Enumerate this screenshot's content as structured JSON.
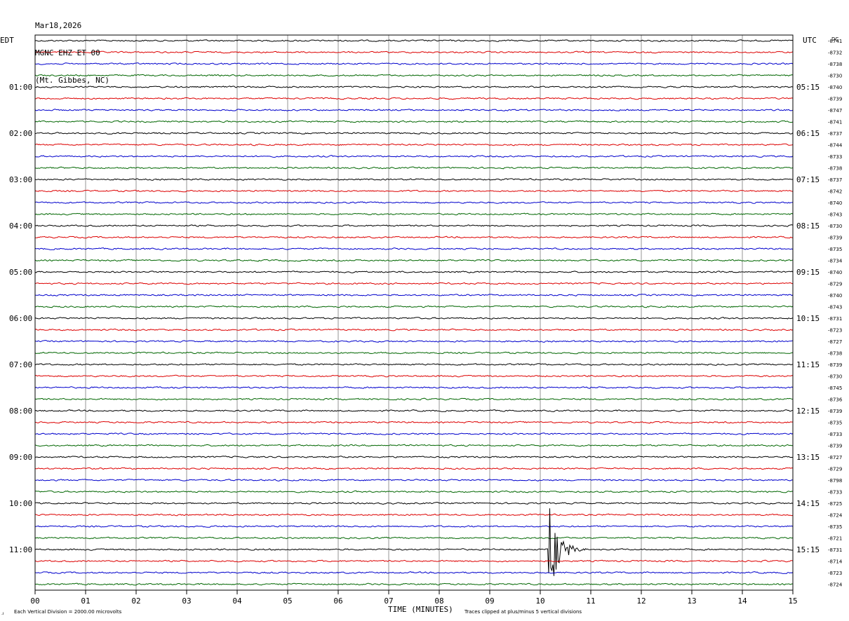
{
  "header": {
    "date": "Mar18,2026",
    "station": "MGNC EHZ ET 00",
    "location": "(Mt. Gibbes, NC)"
  },
  "left_axis_label": "EDT",
  "right_axis_label": "UTC",
  "dc_label": "DC",
  "xlabel": "TIME (MINUTES)",
  "footer_left": "Each Vertical Division = 2000.00 microvolts",
  "footer_right": "Traces clipped at plus/minus 5 vertical divisions",
  "chart_data": {
    "type": "line",
    "subtype": "helicorder",
    "x_ticks": [
      "00",
      "01",
      "02",
      "03",
      "04",
      "05",
      "06",
      "07",
      "08",
      "09",
      "10",
      "11",
      "12",
      "13",
      "14",
      "15"
    ],
    "xlim": [
      0,
      15
    ],
    "grid": true,
    "trace_colors": [
      "#000000",
      "#dd0000",
      "#0000cc",
      "#006600"
    ],
    "traces_per_hour": 4,
    "minutes_per_trace": 15,
    "edt_hour_labels": [
      "01:00",
      "02:00",
      "03:00",
      "04:00",
      "05:00",
      "06:00",
      "07:00",
      "08:00",
      "09:00",
      "10:00",
      "11:00"
    ],
    "utc_hour_labels": [
      "05:15",
      "06:15",
      "07:15",
      "08:15",
      "09:15",
      "10:15",
      "11:15",
      "12:15",
      "13:15",
      "14:15",
      "15:15"
    ],
    "dc_offsets": [
      "-8741",
      "-8732",
      "-8738",
      "-8730",
      "-8740",
      "-8739",
      "-8747",
      "-8741",
      "-8737",
      "-8744",
      "-8733",
      "-8738",
      "-8737",
      "-8742",
      "-8740",
      "-8743",
      "-8730",
      "-8739",
      "-8735",
      "-8734",
      "-8740",
      "-8729",
      "-8740",
      "-8743",
      "-8731",
      "-8723",
      "-8727",
      "-8738",
      "-8739",
      "-8730",
      "-8745",
      "-8736",
      "-8739",
      "-8735",
      "-8733",
      "-8739",
      "-8727",
      "-8729",
      "-8798",
      "-8733",
      "-8725",
      "-8724",
      "-8735",
      "-8721",
      "-8731",
      "-8714",
      "-8723",
      "-8724"
    ],
    "events": [
      {
        "trace_index": 44,
        "start_minute": 10.15,
        "peak_divisions": 5,
        "coda_minutes": 1.0,
        "clipped": true
      }
    ]
  }
}
